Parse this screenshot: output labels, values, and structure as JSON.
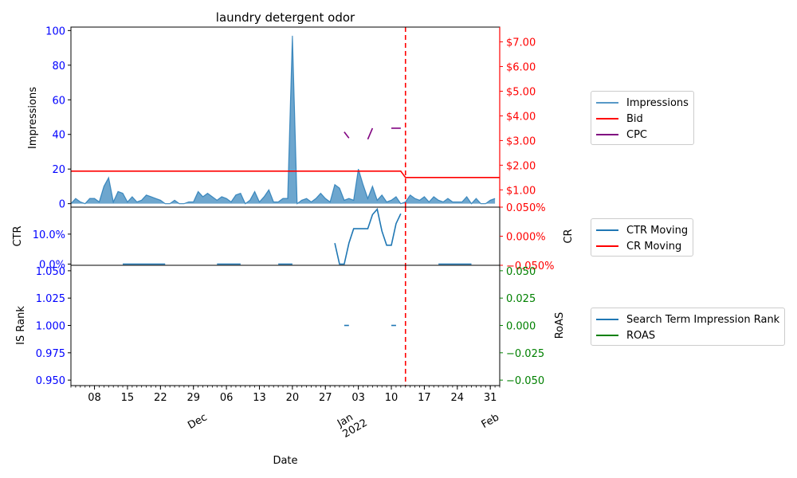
{
  "chart_data": [
    {
      "type": "area",
      "title": "laundry detergent odor",
      "ylabel": "Impressions",
      "ylabel_right": "",
      "ylim": [
        -2,
        102
      ],
      "yticks": [
        "0",
        "20",
        "40",
        "60",
        "80",
        "100"
      ],
      "ylim_right": [
        0.3,
        7.6
      ],
      "yticks_right": [
        "$1.00",
        "$2.00",
        "$3.00",
        "$4.00",
        "$5.00",
        "$6.00",
        "$7.00"
      ],
      "date_start": "2021-11-03",
      "series": [
        {
          "name": "Impressions",
          "color": "#1f77b4",
          "axis": "left",
          "values": [
            0,
            3,
            1,
            0,
            3,
            3,
            1,
            10,
            15,
            1,
            7,
            6,
            1,
            4,
            1,
            2,
            5,
            4,
            3,
            2,
            0,
            0,
            2,
            0,
            0,
            1,
            1,
            7,
            4,
            6,
            4,
            2,
            4,
            3,
            1,
            5,
            6,
            0,
            2,
            7,
            1,
            4,
            8,
            1,
            1,
            3,
            3,
            97,
            0,
            2,
            3,
            1,
            3,
            6,
            3,
            1,
            11,
            9,
            2,
            3,
            2,
            20,
            11,
            3,
            10,
            2,
            5,
            1,
            2,
            4,
            0,
            1,
            5,
            3,
            2,
            4,
            1,
            4,
            2,
            1,
            3,
            1,
            1,
            1,
            4,
            0,
            3,
            0,
            0,
            2,
            3
          ]
        },
        {
          "name": "Bid",
          "color": "#ff0000",
          "axis": "right",
          "segments": [
            [
              [
                "2021-11-03",
                1.76
              ],
              [
                "2022-01-12",
                1.76
              ],
              [
                "2022-01-13",
                1.5
              ],
              [
                "2022-02-02",
                1.5
              ]
            ]
          ]
        },
        {
          "name": "CPC",
          "color": "#800080",
          "axis": "right",
          "segments": [
            [
              [
                "2021-12-31",
                3.35
              ],
              [
                "2022-01-01",
                3.1
              ]
            ],
            [
              [
                "2022-01-05",
                3.05
              ],
              [
                "2022-01-06",
                3.5
              ]
            ],
            [
              [
                "2022-01-10",
                3.5
              ],
              [
                "2022-01-12",
                3.5
              ]
            ]
          ]
        }
      ],
      "vline": {
        "date": "2022-01-13",
        "color": "#ff0000",
        "style": "dashed"
      },
      "legend_placement": "right"
    },
    {
      "type": "line",
      "ylabel": "CTR",
      "ylabel_right": "CR",
      "ylim": [
        -0.004,
        0.19
      ],
      "yticks": [
        "0.0%",
        "10.0%"
      ],
      "ylim_right": [
        -0.0005,
        0.0005
      ],
      "yticks_right": [
        "0.050%",
        "0.000%",
        "−0.050%"
      ],
      "series": [
        {
          "name": "CTR Moving",
          "color": "#1f77b4",
          "axis": "left",
          "segments": [
            [
              [
                "2021-11-14",
                0
              ],
              [
                "2021-11-23",
                0
              ]
            ],
            [
              [
                "2021-12-04",
                0
              ],
              [
                "2021-12-09",
                0
              ]
            ],
            [
              [
                "2021-12-17",
                0
              ],
              [
                "2021-12-20",
                0
              ]
            ],
            [
              [
                "2021-12-29",
                0.07
              ],
              [
                "2021-12-30",
                0
              ],
              [
                "2021-12-31",
                0
              ],
              [
                "2022-01-01",
                0.07
              ],
              [
                "2022-01-02",
                0.118
              ],
              [
                "2022-01-03",
                0.118
              ],
              [
                "2022-01-04",
                0.118
              ],
              [
                "2022-01-05",
                0.118
              ],
              [
                "2022-01-06",
                0.165
              ],
              [
                "2022-01-07",
                0.183
              ],
              [
                "2022-01-08",
                0.11
              ],
              [
                "2022-01-09",
                0.063
              ],
              [
                "2022-01-10",
                0.063
              ],
              [
                "2022-01-11",
                0.135
              ],
              [
                "2022-01-12",
                0.168
              ]
            ],
            [
              [
                "2022-01-20",
                0
              ],
              [
                "2022-01-27",
                0
              ]
            ]
          ]
        },
        {
          "name": "CR Moving",
          "color": "#ff0000",
          "axis": "right",
          "segments": []
        }
      ],
      "vline": {
        "date": "2022-01-13",
        "color": "#ff0000",
        "style": "dashed"
      },
      "legend_placement": "right"
    },
    {
      "type": "line",
      "ylabel": "IS Rank",
      "ylabel_right": "RoAS",
      "xlabel": "Date",
      "ylim": [
        0.945,
        1.055
      ],
      "yticks": [
        "0.950",
        "0.975",
        "1.000",
        "1.025",
        "1.050"
      ],
      "ylim_right": [
        -0.055,
        0.055
      ],
      "yticks_right": [
        "−0.050",
        "−0.025",
        "0.000",
        "0.025",
        "0.050"
      ],
      "series": [
        {
          "name": "Search Term Impression Rank",
          "color": "#1f77b4",
          "axis": "left",
          "segments": [
            [
              [
                "2021-12-31",
                1.0
              ],
              [
                "2022-01-01",
                1.0
              ]
            ],
            [
              [
                "2022-01-10",
                1.0
              ],
              [
                "2022-01-11",
                1.0
              ]
            ]
          ]
        },
        {
          "name": "ROAS",
          "color": "#008000",
          "axis": "right",
          "segments": []
        }
      ],
      "vline": {
        "date": "2022-01-13",
        "color": "#ff0000",
        "style": "dashed"
      },
      "legend_placement": "right"
    }
  ],
  "x_axis": {
    "xlabel": "Date",
    "range": [
      "2021-11-03",
      "2022-02-02"
    ],
    "day_ticks": [
      {
        "date": "2021-11-08",
        "label": "08"
      },
      {
        "date": "2021-11-15",
        "label": "15"
      },
      {
        "date": "2021-11-22",
        "label": "22"
      },
      {
        "date": "2021-11-29",
        "label": "29"
      },
      {
        "date": "2021-12-06",
        "label": "06"
      },
      {
        "date": "2021-12-13",
        "label": "13"
      },
      {
        "date": "2021-12-20",
        "label": "20"
      },
      {
        "date": "2021-12-27",
        "label": "27"
      },
      {
        "date": "2022-01-03",
        "label": "03"
      },
      {
        "date": "2022-01-10",
        "label": "10"
      },
      {
        "date": "2022-01-17",
        "label": "17"
      },
      {
        "date": "2022-01-24",
        "label": "24"
      },
      {
        "date": "2022-01-31",
        "label": "31"
      }
    ],
    "month_labels": [
      {
        "date": "2021-12-01",
        "label": "Dec"
      },
      {
        "date": "2022-01-01",
        "label": "Jan\n2022"
      },
      {
        "date": "2022-02-01",
        "label": "Feb"
      }
    ]
  },
  "colors": {
    "left_tick": "#0000ff",
    "right_tick_top": "#ff0000",
    "right_tick_mid": "#ff0000",
    "right_tick_bottom": "#008000"
  }
}
